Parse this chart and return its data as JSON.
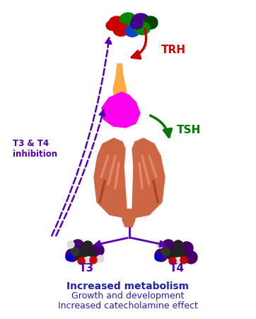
{
  "bg_color": "#ffffff",
  "purple_color": "#5500aa",
  "red_color": "#cc0000",
  "green_color": "#007700",
  "text_color": "#2222aa",
  "trh_label": "TRH",
  "tsh_label": "TSH",
  "t3_label": "T3",
  "t4_label": "T4",
  "inhibition_label": "T3 & T4\ninhibition",
  "bottom_line1": "Increased metabolism",
  "bottom_line2": "Growth and development",
  "bottom_line3": "Increased catecholamine effect",
  "pituitary_body_color": "#ff00ee",
  "pituitary_stalk_color": "#ffaa44",
  "thyroid_color": "#cc6644",
  "thyroid_light": "#dd8866",
  "thyroid_dark": "#aa4422"
}
